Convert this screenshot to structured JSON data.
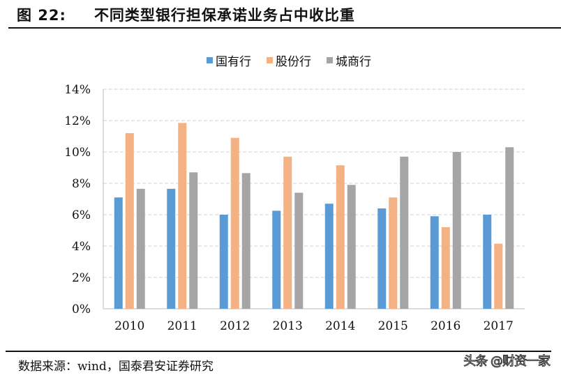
{
  "title": {
    "figure": "图 22:",
    "text": "不同类型银行担保承诺业务占中收比重"
  },
  "source": "数据来源：wind，国泰君安证券研究",
  "watermark": "头条 @财资一家",
  "chart_data": {
    "type": "bar",
    "categories": [
      "2010",
      "2011",
      "2012",
      "2013",
      "2014",
      "2015",
      "2016",
      "2017"
    ],
    "series": [
      {
        "name": "国有行",
        "color": "#5b9bd5",
        "values": [
          7.1,
          7.65,
          6.0,
          6.25,
          6.7,
          6.4,
          5.9,
          6.0
        ]
      },
      {
        "name": "股份行",
        "color": "#f4b183",
        "values": [
          11.2,
          11.85,
          10.9,
          9.7,
          9.15,
          7.1,
          5.2,
          4.15
        ]
      },
      {
        "name": "城商行",
        "color": "#a5a5a5",
        "values": [
          7.65,
          8.7,
          8.65,
          7.4,
          7.9,
          9.7,
          10.0,
          10.3
        ]
      }
    ],
    "ylim": [
      0,
      14
    ],
    "yticks": [
      "0%",
      "2%",
      "4%",
      "6%",
      "8%",
      "10%",
      "12%",
      "14%"
    ],
    "ytick_values": [
      0,
      2,
      4,
      6,
      8,
      10,
      12,
      14
    ],
    "grid": true,
    "legend": "top"
  }
}
